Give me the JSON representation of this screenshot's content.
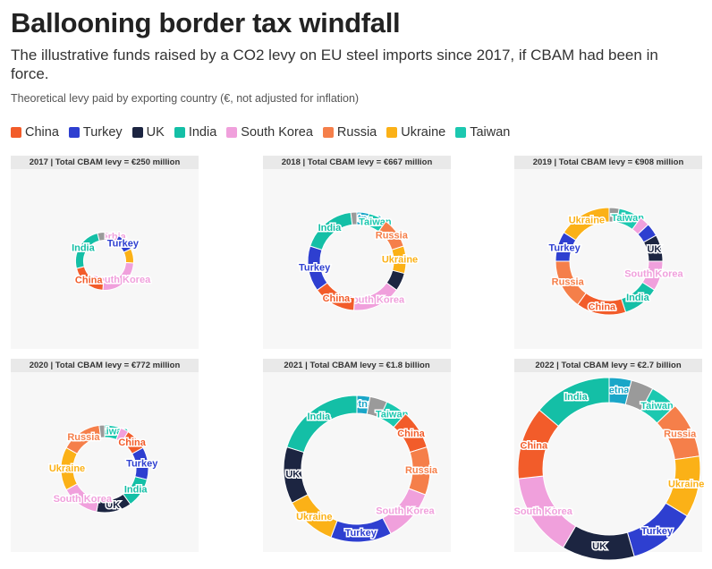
{
  "header": {
    "title": "Ballooning border tax windfall",
    "subtitle": "The illustrative funds raised by a CO2 levy on EU steel imports since 2017, if CBAM had been in force.",
    "note": "Theoretical levy paid by exporting country (€, not adjusted for inflation)"
  },
  "legend": [
    {
      "label": "China",
      "color": "#f25c2a"
    },
    {
      "label": "Turkey",
      "color": "#2e3fd0"
    },
    {
      "label": "UK",
      "color": "#1c2541"
    },
    {
      "label": "India",
      "color": "#14bfa6"
    },
    {
      "label": "South Korea",
      "color": "#f0a0dc"
    },
    {
      "label": "Russia",
      "color": "#f57f4a"
    },
    {
      "label": "Ukraine",
      "color": "#fbb117"
    },
    {
      "label": "Taiwan",
      "color": "#1cc8b0"
    }
  ],
  "colors": {
    "China": "#f25c2a",
    "Turkey": "#2e3fd0",
    "UK": "#1c2541",
    "India": "#14bfa6",
    "South Korea": "#f0a0dc",
    "Russia": "#f57f4a",
    "Ukraine": "#fbb117",
    "Taiwan": "#1cc8b0",
    "Vietnam": "#1aa6c8",
    "Serbia": "#f0a0dc",
    "Other": "#9a9a9a"
  },
  "panels": [
    {
      "title": "2017 | Total CBAM levy = €250 million"
    },
    {
      "title": "2018 | Total CBAM levy = €667 million"
    },
    {
      "title": "2019 | Total CBAM levy = €908 million"
    },
    {
      "title": "2020 | Total CBAM levy = €772 million"
    },
    {
      "title": "2021 | Total CBAM levy = €1.8 billion"
    },
    {
      "title": "2022 | Total CBAM levy = €2.7 billion"
    }
  ],
  "chart_data": [
    {
      "type": "pie",
      "year": 2017,
      "total_eur": 250000000,
      "slices": [
        {
          "name": "Serbia",
          "value": 8,
          "label": "Serbia"
        },
        {
          "name": "Turkey",
          "value": 10,
          "label": "Turkey"
        },
        {
          "name": "Ukraine",
          "value": 8,
          "label": ""
        },
        {
          "name": "South Korea",
          "value": 25,
          "label": "South Korea"
        },
        {
          "name": "China",
          "value": 20,
          "label": "China"
        },
        {
          "name": "India",
          "value": 25,
          "label": "India"
        },
        {
          "name": "Other",
          "value": 4,
          "label": ""
        }
      ]
    },
    {
      "type": "pie",
      "year": 2018,
      "total_eur": 667000000,
      "slices": [
        {
          "name": "Vietnam",
          "value": 4,
          "label": "Vietnam"
        },
        {
          "name": "Taiwan",
          "value": 6,
          "label": "Taiwan"
        },
        {
          "name": "Russia",
          "value": 10,
          "label": "Russia"
        },
        {
          "name": "Ukraine",
          "value": 9,
          "label": "Ukraine"
        },
        {
          "name": "UK",
          "value": 6,
          "label": ""
        },
        {
          "name": "South Korea",
          "value": 16,
          "label": "South Korea"
        },
        {
          "name": "China",
          "value": 14,
          "label": "China"
        },
        {
          "name": "Turkey",
          "value": 15,
          "label": "Turkey"
        },
        {
          "name": "India",
          "value": 18,
          "label": "India"
        },
        {
          "name": "Other",
          "value": 2,
          "label": ""
        }
      ]
    },
    {
      "type": "pie",
      "year": 2019,
      "total_eur": 908000000,
      "slices": [
        {
          "name": "Other",
          "value": 3,
          "label": ""
        },
        {
          "name": "Taiwan",
          "value": 7,
          "label": "Taiwan"
        },
        {
          "name": "South Korea",
          "value": 3,
          "label": ""
        },
        {
          "name": "Turkey",
          "value": 4,
          "label": ""
        },
        {
          "name": "UK",
          "value": 8,
          "label": "UK"
        },
        {
          "name": "South Korea",
          "value": 9,
          "label": "South Korea"
        },
        {
          "name": "India",
          "value": 11,
          "label": "India"
        },
        {
          "name": "China",
          "value": 15,
          "label": "China"
        },
        {
          "name": "Russia",
          "value": 15,
          "label": "Russia"
        },
        {
          "name": "Turkey",
          "value": 9,
          "label": "Turkey"
        },
        {
          "name": "Ukraine",
          "value": 16,
          "label": "Ukraine"
        }
      ]
    },
    {
      "type": "pie",
      "year": 2020,
      "total_eur": 772000000,
      "slices": [
        {
          "name": "Taiwan",
          "value": 6,
          "label": "Taiwan"
        },
        {
          "name": "South Korea",
          "value": 3,
          "label": ""
        },
        {
          "name": "China",
          "value": 8,
          "label": "China"
        },
        {
          "name": "Turkey",
          "value": 12,
          "label": "Turkey"
        },
        {
          "name": "India",
          "value": 11,
          "label": "India"
        },
        {
          "name": "UK",
          "value": 13,
          "label": "UK"
        },
        {
          "name": "South Korea",
          "value": 14,
          "label": "South Korea"
        },
        {
          "name": "Ukraine",
          "value": 16,
          "label": "Ukraine"
        },
        {
          "name": "Russia",
          "value": 15,
          "label": "Russia"
        },
        {
          "name": "Other",
          "value": 2,
          "label": ""
        }
      ]
    },
    {
      "type": "pie",
      "year": 2021,
      "total_eur": 1800000000,
      "slices": [
        {
          "name": "Vietnam",
          "value": 3,
          "label": "Vietnam"
        },
        {
          "name": "Other",
          "value": 4,
          "label": ""
        },
        {
          "name": "Taiwan",
          "value": 5,
          "label": "Taiwan"
        },
        {
          "name": "China",
          "value": 9,
          "label": "China"
        },
        {
          "name": "Russia",
          "value": 11,
          "label": "Russia"
        },
        {
          "name": "South Korea",
          "value": 12,
          "label": "South Korea"
        },
        {
          "name": "Turkey",
          "value": 14,
          "label": "Turkey"
        },
        {
          "name": "Ukraine",
          "value": 12,
          "label": "Ukraine"
        },
        {
          "name": "UK",
          "value": 13,
          "label": "UK"
        },
        {
          "name": "India",
          "value": 21,
          "label": "India"
        }
      ]
    },
    {
      "type": "pie",
      "year": 2022,
      "total_eur": 2700000000,
      "slices": [
        {
          "name": "Vietnam",
          "value": 4,
          "label": "Vietnam"
        },
        {
          "name": "Other",
          "value": 4,
          "label": ""
        },
        {
          "name": "Taiwan",
          "value": 5,
          "label": "Taiwan"
        },
        {
          "name": "Russia",
          "value": 10,
          "label": "Russia"
        },
        {
          "name": "Ukraine",
          "value": 11,
          "label": "Ukraine"
        },
        {
          "name": "Turkey",
          "value": 12,
          "label": "Turkey"
        },
        {
          "name": "UK",
          "value": 13,
          "label": "UK"
        },
        {
          "name": "South Korea",
          "value": 15,
          "label": "South Korea"
        },
        {
          "name": "China",
          "value": 13,
          "label": "China"
        },
        {
          "name": "India",
          "value": 14,
          "label": "India"
        }
      ]
    }
  ]
}
